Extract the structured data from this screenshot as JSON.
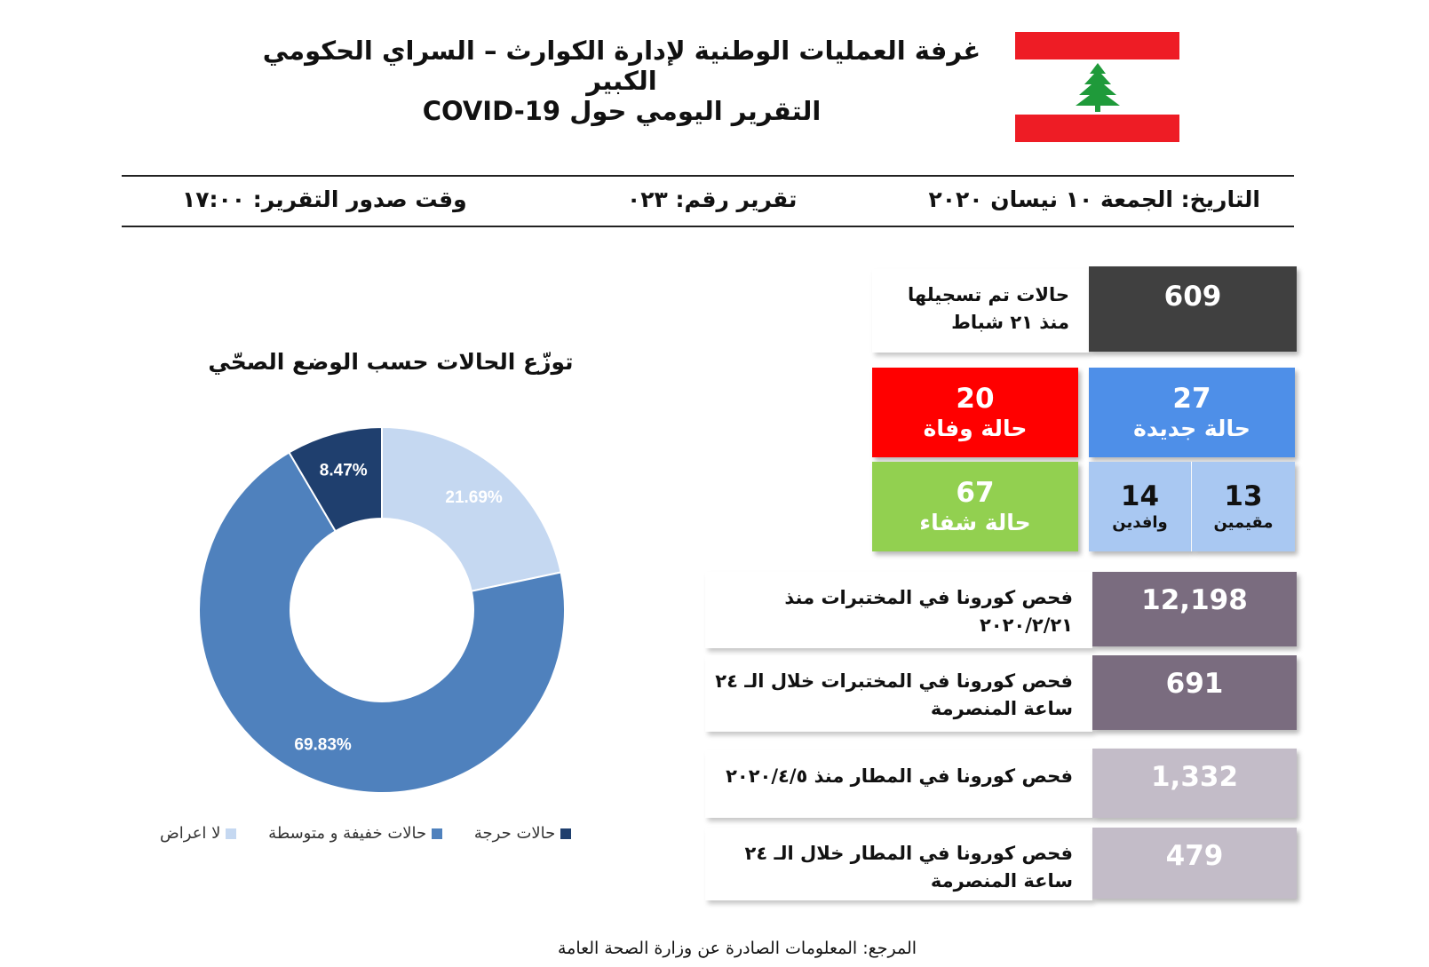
{
  "header": {
    "title": "غرفة العمليات الوطنية لإدارة الكوارث – السراي الحكومي الكبير",
    "subtitle": "التقرير اليومي حول COVID-19"
  },
  "meta": {
    "date": "التاريخ: الجمعة ١٠ نيسان ٢٠٢٠",
    "report_number": "تقرير رقم: ٠٢٣",
    "report_time": "وقت صدور التقرير: ١٧:٠٠"
  },
  "stats": {
    "total_cases": {
      "value": "609",
      "label_line1": "حالات تم تسجيلها",
      "label_line2": "منذ ٢١ شباط"
    },
    "new_cases": {
      "value": "27",
      "label": "حالة جديدة"
    },
    "deaths": {
      "value": "20",
      "label": "حالة وفاة"
    },
    "recovered": {
      "value": "67",
      "label": "حالة شفاء"
    },
    "residents": {
      "value": "13",
      "label": "مقيمين"
    },
    "arrivals": {
      "value": "14",
      "label": "وافدين"
    },
    "lab_tests_total": {
      "value": "12,198",
      "label_line1": "فحص كورونا في المختبرات منذ",
      "label_line2": "٢٠٢٠/٢/٢١"
    },
    "lab_tests_24h": {
      "value": "691",
      "label_line1": "فحص كورونا في المختبرات خلال الـ ٢٤",
      "label_line2": "ساعة المنصرمة"
    },
    "airport_tests_total": {
      "value": "1,332",
      "label_line1": "فحص كورونا في المطار منذ ٢٠٢٠/٤/٥"
    },
    "airport_tests_24h": {
      "value": "479",
      "label_line1": "فحص كورونا في المطار خلال الـ ٢٤",
      "label_line2": "ساعة المنصرمة"
    }
  },
  "colors": {
    "flag_red": "#ee1c25",
    "cedar_green": "#1f9a3a",
    "total_tile": "#404040",
    "new_tile": "#4e8fe8",
    "death_tile": "#ff0000",
    "recovered_tile": "#92d050",
    "split_tile": "#a9c8f2",
    "lab_tile": "#7a6c7f",
    "airport_tile": "#c3bcc8"
  },
  "icons": {
    "flag": "lebanon-flag-icon"
  },
  "chart_data": {
    "type": "pie",
    "title": "توزّع الحالات حسب الوضع الصحّي",
    "donut": true,
    "legend_position": "bottom",
    "series": [
      {
        "name": "لا اعراض",
        "value": 21.69,
        "label": "21.69%",
        "color": "#c5d8f1"
      },
      {
        "name": "حالات خفيفة و متوسطة",
        "value": 69.83,
        "label": "69.83%",
        "color": "#4f81bd"
      },
      {
        "name": "حالات حرجة",
        "value": 8.47,
        "label": "8.47%",
        "color": "#1f3f6e"
      }
    ]
  },
  "footer": {
    "source": "المرجع: المعلومات الصادرة عن وزارة الصحة العامة"
  }
}
